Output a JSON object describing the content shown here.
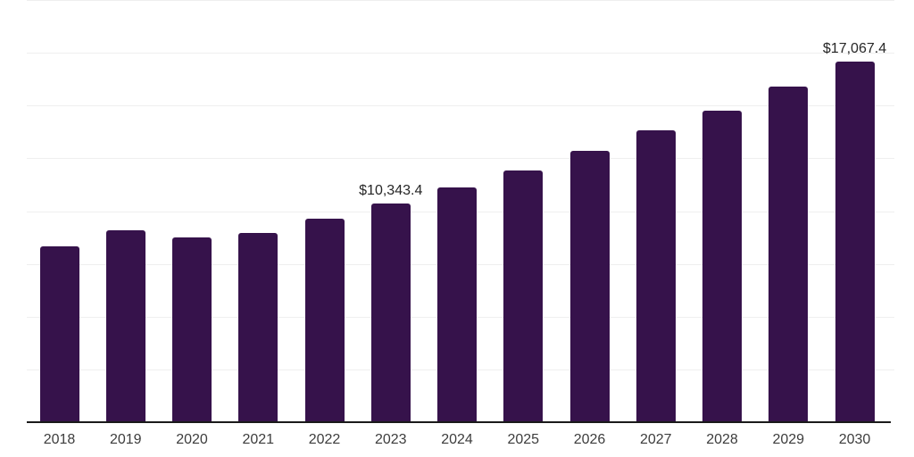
{
  "chart_data": {
    "type": "bar",
    "title": "",
    "xlabel": "",
    "ylabel": "",
    "categories": [
      "2018",
      "2019",
      "2020",
      "2021",
      "2022",
      "2023",
      "2024",
      "2025",
      "2026",
      "2027",
      "2028",
      "2029",
      "2030"
    ],
    "values": [
      8350,
      9080,
      8740,
      8950,
      9620,
      10343.4,
      11130,
      11930,
      12850,
      13830,
      14740,
      15890,
      17067.4
    ],
    "data_labels": {
      "2023": "$10,343.4",
      "2030": "$17,067.4"
    },
    "ylim": [
      0,
      20000
    ],
    "gridline_step": 2500,
    "grid": "horizontal",
    "legend": "none",
    "colors": {
      "bar": "#36124b",
      "axis_line": "#1a1a1a",
      "gridline": "#efefef",
      "tick_label": "#3d3d3d",
      "value_label": "#262626",
      "background": "#ffffff"
    }
  }
}
